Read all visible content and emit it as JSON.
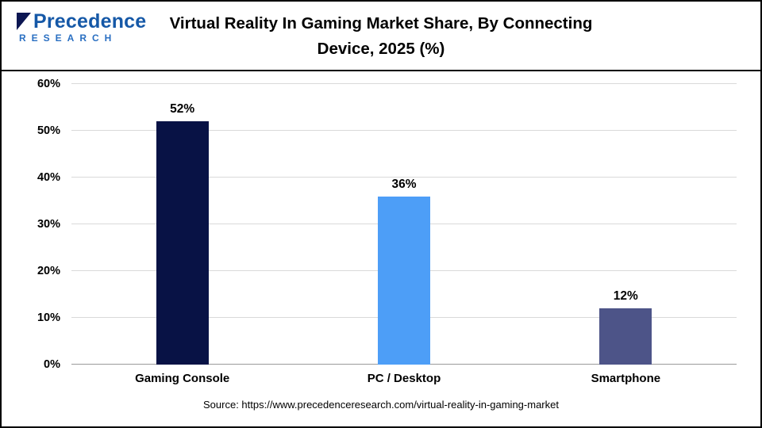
{
  "logo": {
    "brand": "Precedence",
    "sub": "RESEARCH"
  },
  "header": {
    "title_line1": "Virtual Reality In Gaming Market Share, By Connecting",
    "title_line2": "Device, 2025 (%)"
  },
  "source": "Source: https://www.precedenceresearch.com/virtual-reality-in-gaming-market",
  "chart_data": {
    "type": "bar",
    "title": "Virtual Reality In Gaming Market Share, By Connecting Device, 2025 (%)",
    "categories": [
      "Gaming Console",
      "PC / Desktop",
      "Smartphone"
    ],
    "values": [
      52,
      36,
      12
    ],
    "value_labels": [
      "52%",
      "36%",
      "12%"
    ],
    "bar_colors": [
      "#081245",
      "#4D9EF7",
      "#4D5488"
    ],
    "xlabel": "",
    "ylabel": "",
    "ylim": [
      0,
      60
    ],
    "yticks": [
      0,
      10,
      20,
      30,
      40,
      50,
      60
    ],
    "ytick_labels": [
      "0%",
      "10%",
      "20%",
      "30%",
      "40%",
      "50%",
      "60%"
    ],
    "grid": "horizontal",
    "legend": "none"
  }
}
